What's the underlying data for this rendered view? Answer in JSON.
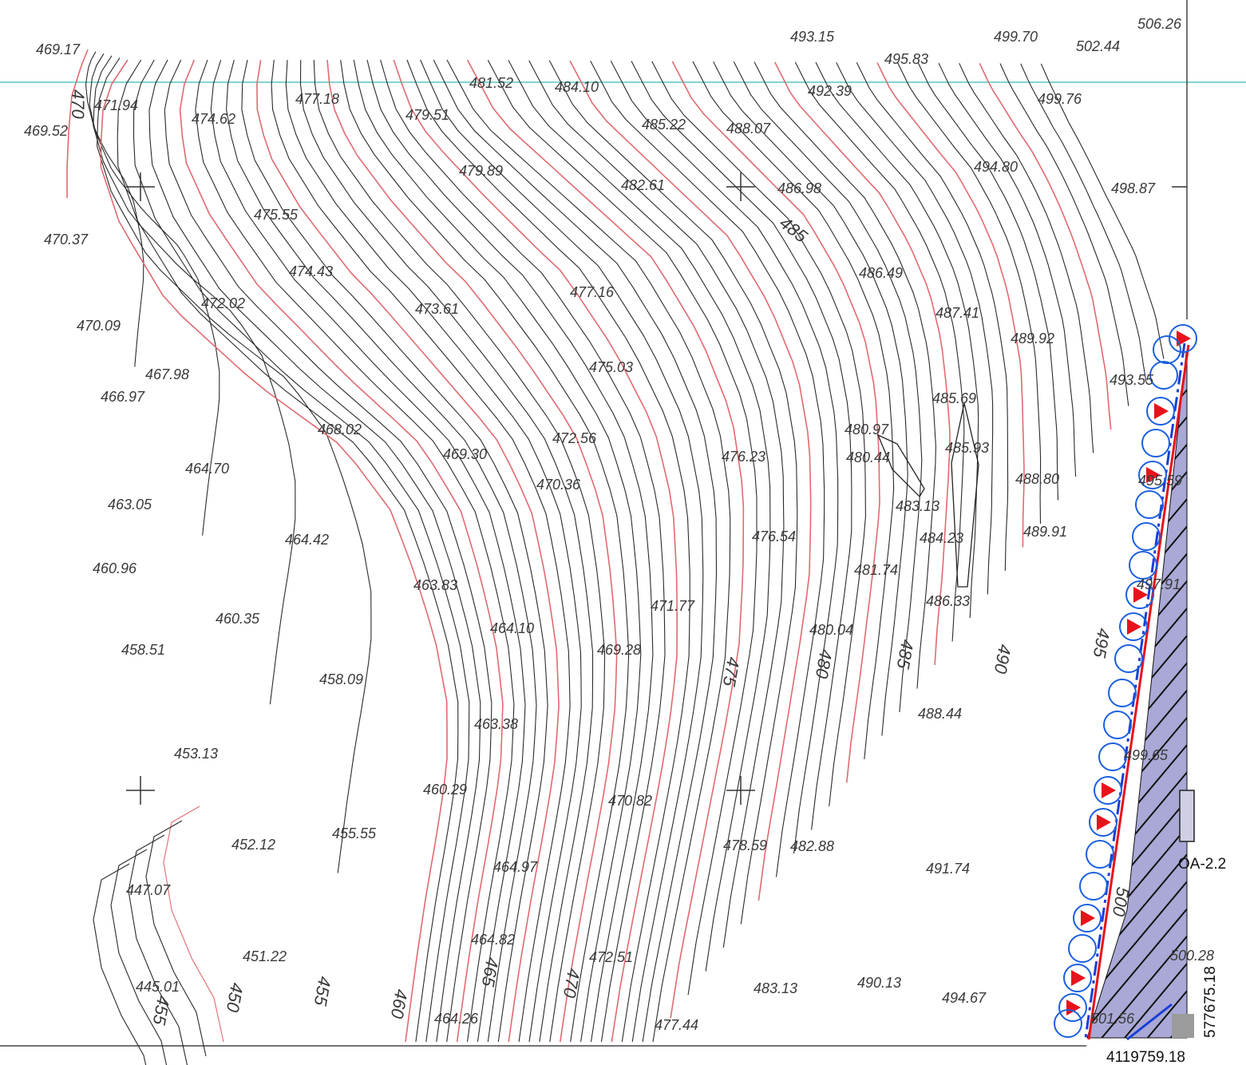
{
  "map": {
    "colors": {
      "background": "#ffffff",
      "contour_major": "#e06a70",
      "contour_minor": "#2a2a2a",
      "grid_line": "#7fd6cf",
      "boundary_red": "#e8121b",
      "boundary_blue": "#1a3fd6",
      "hatch_fill": "#a9a8d6",
      "marker_circle": "#1a5fe0",
      "marker_flag": "#e8121b"
    },
    "spot_heights": [
      "469.17",
      "493.15",
      "499.70",
      "502.44",
      "506.26",
      "495.83",
      "481.52",
      "484.10",
      "492.39",
      "499.76",
      "471.94",
      "477.18",
      "479.51",
      "469.52",
      "474.62",
      "485.22",
      "488.07",
      "479.89",
      "494.80",
      "482.61",
      "486.98",
      "498.87",
      "475.55",
      "470.37",
      "486.49",
      "474.43",
      "477.16",
      "472.02",
      "473.61",
      "487.41",
      "470.09",
      "489.92",
      "475.03",
      "493.55",
      "467.98",
      "466.97",
      "485.69",
      "468.02",
      "480.97",
      "472.56",
      "469.30",
      "476.23",
      "480.44",
      "485.93",
      "464.70",
      "488.80",
      "470.36",
      "463.05",
      "483.13",
      "476.54",
      "484.23",
      "489.91",
      "464.42",
      "460.96",
      "481.74",
      "463.83",
      "471.77",
      "486.33",
      "460.35",
      "464.10",
      "480.04",
      "458.51",
      "469.28",
      "458.09",
      "488.44",
      "463.38",
      "453.13",
      "460.29",
      "470.82",
      "455.55",
      "452.12",
      "478.59",
      "482.88",
      "491.74",
      "447.07",
      "464.97",
      "451.22",
      "464.82",
      "472.51",
      "445.01",
      "483.13",
      "490.13",
      "494.67",
      "464.26",
      "477.44"
    ],
    "contour_labels": [
      "470",
      "485",
      "475",
      "480",
      "485",
      "490",
      "495",
      "455",
      "450",
      "455",
      "460",
      "465",
      "470",
      "500"
    ],
    "partial_labels": [
      "495.59",
      "497.91",
      "499.65",
      "500.28",
      "501.56"
    ],
    "parcel_label": "OA-2.2",
    "coord_x": "4119759.18",
    "coord_y": "577675.18"
  }
}
